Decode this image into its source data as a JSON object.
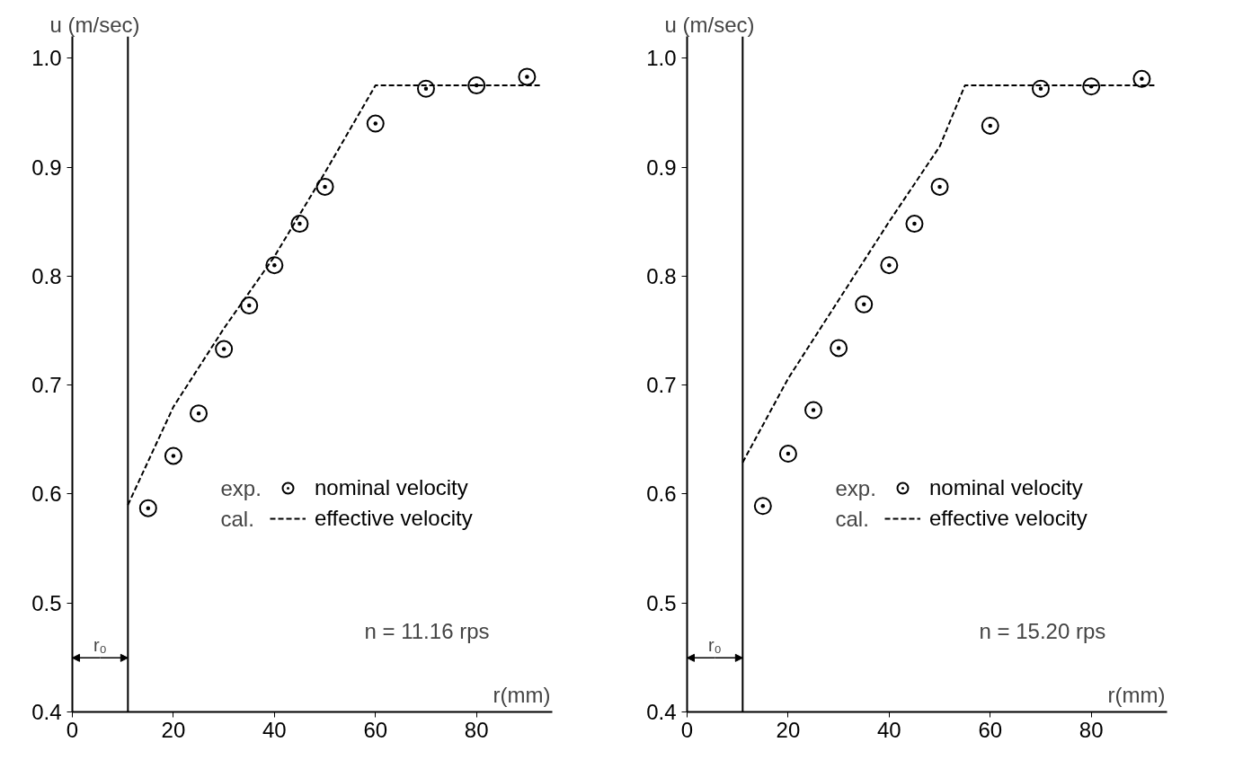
{
  "chart_data": [
    {
      "type": "scatter",
      "xlabel": "r(mm)",
      "ylabel": "u (m/sec)",
      "xlim": [
        0,
        95
      ],
      "ylim": [
        0.4,
        1.02
      ],
      "xticks": [
        0,
        20,
        40,
        60,
        80
      ],
      "yticks": [
        {
          "value": 0.4,
          "label": "0.4"
        },
        {
          "value": 0.5,
          "label": "0.5"
        },
        {
          "value": 0.6,
          "label": "0.6"
        },
        {
          "value": 0.7,
          "label": "0.7"
        },
        {
          "value": 0.8,
          "label": "0.8"
        },
        {
          "value": 0.9,
          "label": "0.9"
        },
        {
          "value": 1,
          "label": "1.0"
        }
      ],
      "grid": false,
      "legend": "right",
      "series": [
        {
          "name": "nominal velocity",
          "marker": "circle",
          "color": "#000000",
          "x": [
            15,
            20,
            25,
            30,
            35,
            40,
            45,
            50,
            60,
            70,
            80,
            90
          ],
          "values": [
            0.587,
            0.635,
            0.674,
            0.733,
            0.773,
            0.81,
            0.848,
            0.882,
            0.94,
            0.972,
            0.975,
            0.983
          ]
        },
        {
          "name": "effective velocity",
          "type": "line",
          "line_style": "dashed",
          "color": "#000000",
          "x": [
            11,
            20,
            30,
            40,
            50,
            60,
            93
          ],
          "values": [
            0.59,
            0.68,
            0.752,
            0.818,
            0.895,
            0.975,
            0.975
          ]
        }
      ],
      "ref_lines": [
        {
          "axis": "x",
          "value": 11,
          "label": "r₀"
        }
      ],
      "annotations": [
        "exp.",
        "cal.",
        "n = 11.16 rps"
      ]
    },
    {
      "type": "scatter",
      "xlabel": "r(mm)",
      "ylabel": "u (m/sec)",
      "xlim": [
        0,
        95
      ],
      "ylim": [
        0.4,
        1.02
      ],
      "xticks": [
        0,
        20,
        40,
        60,
        80
      ],
      "yticks": [
        {
          "value": 0.4,
          "label": "0.4"
        },
        {
          "value": 0.5,
          "label": "0.5"
        },
        {
          "value": 0.6,
          "label": "0.6"
        },
        {
          "value": 0.7,
          "label": "0.7"
        },
        {
          "value": 0.8,
          "label": "0.8"
        },
        {
          "value": 0.9,
          "label": "0.9"
        },
        {
          "value": 1,
          "label": "1.0"
        }
      ],
      "grid": false,
      "legend": "right",
      "series": [
        {
          "name": "nominal velocity",
          "marker": "circle",
          "color": "#000000",
          "x": [
            15,
            20,
            25,
            30,
            35,
            40,
            45,
            50,
            60,
            70,
            80,
            90
          ],
          "values": [
            0.589,
            0.637,
            0.677,
            0.734,
            0.774,
            0.81,
            0.848,
            0.882,
            0.938,
            0.972,
            0.974,
            0.981
          ]
        },
        {
          "name": "effective velocity",
          "type": "line",
          "line_style": "dashed",
          "color": "#000000",
          "x": [
            11,
            20,
            30,
            40,
            50,
            55,
            93
          ],
          "values": [
            0.629,
            0.706,
            0.778,
            0.85,
            0.919,
            0.975,
            0.975
          ]
        }
      ],
      "ref_lines": [
        {
          "axis": "x",
          "value": 11,
          "label": "r₀"
        }
      ],
      "annotations": [
        "exp.",
        "cal.",
        "n = 15.20 rps"
      ]
    }
  ]
}
